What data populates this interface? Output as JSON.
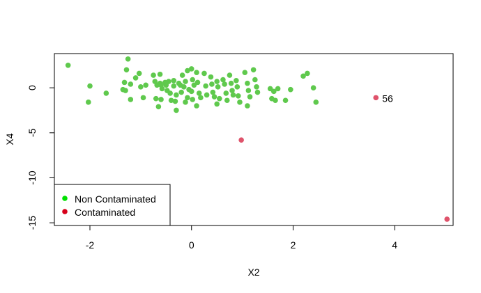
{
  "chart_data": {
    "type": "scatter",
    "title": "",
    "xlabel": "X2",
    "ylabel": "X4",
    "xlim": [
      -2.7,
      5.15
    ],
    "ylim": [
      -15.3,
      3.8
    ],
    "xticks": [
      -2,
      0,
      2,
      4
    ],
    "yticks": [
      0,
      -5,
      -10,
      -15
    ],
    "grid": false,
    "legend": {
      "position": "bottom-left",
      "entries": [
        {
          "label": "Non Contaminated",
          "color": "#00e000"
        },
        {
          "label": "Contaminated",
          "color": "#d7001a"
        }
      ]
    },
    "series": [
      {
        "name": "Non Contaminated",
        "color": "#5fc94d",
        "points": [
          [
            -2.43,
            2.5
          ],
          [
            -2.0,
            0.2
          ],
          [
            -2.03,
            -1.6
          ],
          [
            -1.68,
            -0.6
          ],
          [
            -1.25,
            3.2
          ],
          [
            -1.28,
            2.0
          ],
          [
            -1.32,
            0.6
          ],
          [
            -1.35,
            -0.2
          ],
          [
            -1.3,
            -0.3
          ],
          [
            -1.2,
            0.4
          ],
          [
            -1.2,
            -1.3
          ],
          [
            -1.03,
            1.6
          ],
          [
            -1.1,
            1.1
          ],
          [
            -1.0,
            0.1
          ],
          [
            -0.95,
            -1.1
          ],
          [
            -0.9,
            0.3
          ],
          [
            -0.75,
            1.4
          ],
          [
            -0.72,
            0.7
          ],
          [
            -0.7,
            -1.2
          ],
          [
            -0.68,
            0.3
          ],
          [
            -0.62,
            1.5
          ],
          [
            -0.62,
            0.5
          ],
          [
            -0.6,
            0.3
          ],
          [
            -0.58,
            -0.1
          ],
          [
            -0.6,
            -1.3
          ],
          [
            -0.65,
            -2.1
          ],
          [
            -0.52,
            0.6
          ],
          [
            -0.5,
            0.3
          ],
          [
            -0.48,
            -0.3
          ],
          [
            -0.45,
            0.7
          ],
          [
            -0.42,
            -0.6
          ],
          [
            -0.4,
            -1.4
          ],
          [
            -0.35,
            0.8
          ],
          [
            -0.35,
            0.2
          ],
          [
            -0.3,
            -0.8
          ],
          [
            -0.32,
            -1.5
          ],
          [
            -0.3,
            -2.5
          ],
          [
            -0.25,
            0.5
          ],
          [
            -0.22,
            0.3
          ],
          [
            -0.18,
            1.4
          ],
          [
            -0.2,
            -0.5
          ],
          [
            -0.08,
            1.9
          ],
          [
            -0.12,
            0.7
          ],
          [
            -0.15,
            0.1
          ],
          [
            -0.05,
            -0.2
          ],
          [
            -0.08,
            -1.1
          ],
          [
            -0.12,
            -1.6
          ],
          [
            0.0,
            2.1
          ],
          [
            0.02,
            0.9
          ],
          [
            0.05,
            0.3
          ],
          [
            0.0,
            -0.4
          ],
          [
            0.02,
            -1.3
          ],
          [
            0.1,
            1.7
          ],
          [
            0.12,
            0.6
          ],
          [
            0.15,
            -0.6
          ],
          [
            0.18,
            -1.1
          ],
          [
            0.1,
            -2.0
          ],
          [
            0.25,
            1.6
          ],
          [
            0.28,
            0.2
          ],
          [
            0.3,
            -0.8
          ],
          [
            0.38,
            1.2
          ],
          [
            0.4,
            0.4
          ],
          [
            0.42,
            -0.5
          ],
          [
            0.45,
            -1.0
          ],
          [
            0.5,
            0.7
          ],
          [
            0.52,
            0.1
          ],
          [
            0.55,
            -1.2
          ],
          [
            0.5,
            -1.8
          ],
          [
            0.62,
            0.9
          ],
          [
            0.65,
            0.4
          ],
          [
            0.68,
            -0.6
          ],
          [
            0.7,
            -1.4
          ],
          [
            0.75,
            1.4
          ],
          [
            0.78,
            0.5
          ],
          [
            0.8,
            -0.3
          ],
          [
            0.82,
            -0.8
          ],
          [
            0.88,
            0.8
          ],
          [
            0.9,
            0.1
          ],
          [
            0.92,
            -0.9
          ],
          [
            0.95,
            -1.6
          ],
          [
            1.05,
            1.7
          ],
          [
            1.1,
            0.5
          ],
          [
            1.12,
            -0.3
          ],
          [
            1.15,
            -1.0
          ],
          [
            1.1,
            -2.0
          ],
          [
            1.22,
            2.0
          ],
          [
            1.25,
            0.9
          ],
          [
            1.28,
            0.1
          ],
          [
            1.3,
            -0.5
          ],
          [
            1.55,
            -0.1
          ],
          [
            1.58,
            -1.2
          ],
          [
            1.62,
            -0.4
          ],
          [
            1.65,
            -1.4
          ],
          [
            1.7,
            -0.1
          ],
          [
            1.85,
            -1.4
          ],
          [
            1.95,
            -0.2
          ],
          [
            2.2,
            1.3
          ],
          [
            2.28,
            1.6
          ],
          [
            2.4,
            0.0
          ],
          [
            2.45,
            -1.6
          ]
        ]
      },
      {
        "name": "Contaminated",
        "color": "#df536b",
        "points": [
          [
            0.98,
            -5.8
          ],
          [
            3.63,
            -1.1
          ],
          [
            5.03,
            -14.6
          ]
        ]
      }
    ],
    "annotations": [
      {
        "text": "56",
        "x": 3.63,
        "y": -1.1
      }
    ]
  }
}
